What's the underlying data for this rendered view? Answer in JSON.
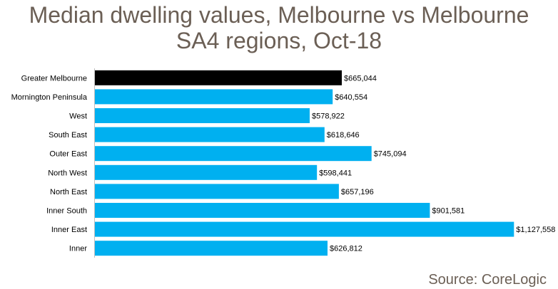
{
  "chart_data": {
    "type": "bar",
    "orientation": "horizontal",
    "title_lines": [
      "Median dwelling values, Melbourne vs Melbourne",
      "SA4 regions, Oct-18"
    ],
    "categories": [
      "Greater Melbourne",
      "Mornington Peninsula",
      "West",
      "South East",
      "Outer East",
      "North West",
      "North East",
      "Inner South",
      "Inner East",
      "Inner"
    ],
    "values": [
      665044,
      640554,
      578922,
      618646,
      745094,
      598441,
      657196,
      901581,
      1127558,
      626812
    ],
    "value_labels": [
      "$665,044",
      "$640,554",
      "$578,922",
      "$618,646",
      "$745,094",
      "$598,441",
      "$657,196",
      "$901,581",
      "$1,127,558",
      "$626,812"
    ],
    "highlight_index": 0,
    "xlim": [
      0,
      1150000
    ],
    "xlabel": "",
    "ylabel": "",
    "grid": false,
    "legend": "none",
    "source": "Source: CoreLogic"
  },
  "colors": {
    "highlight": "#000000",
    "bar": "#00b0f0",
    "title": "#6b5f55",
    "axis": "#bfbfbf"
  }
}
